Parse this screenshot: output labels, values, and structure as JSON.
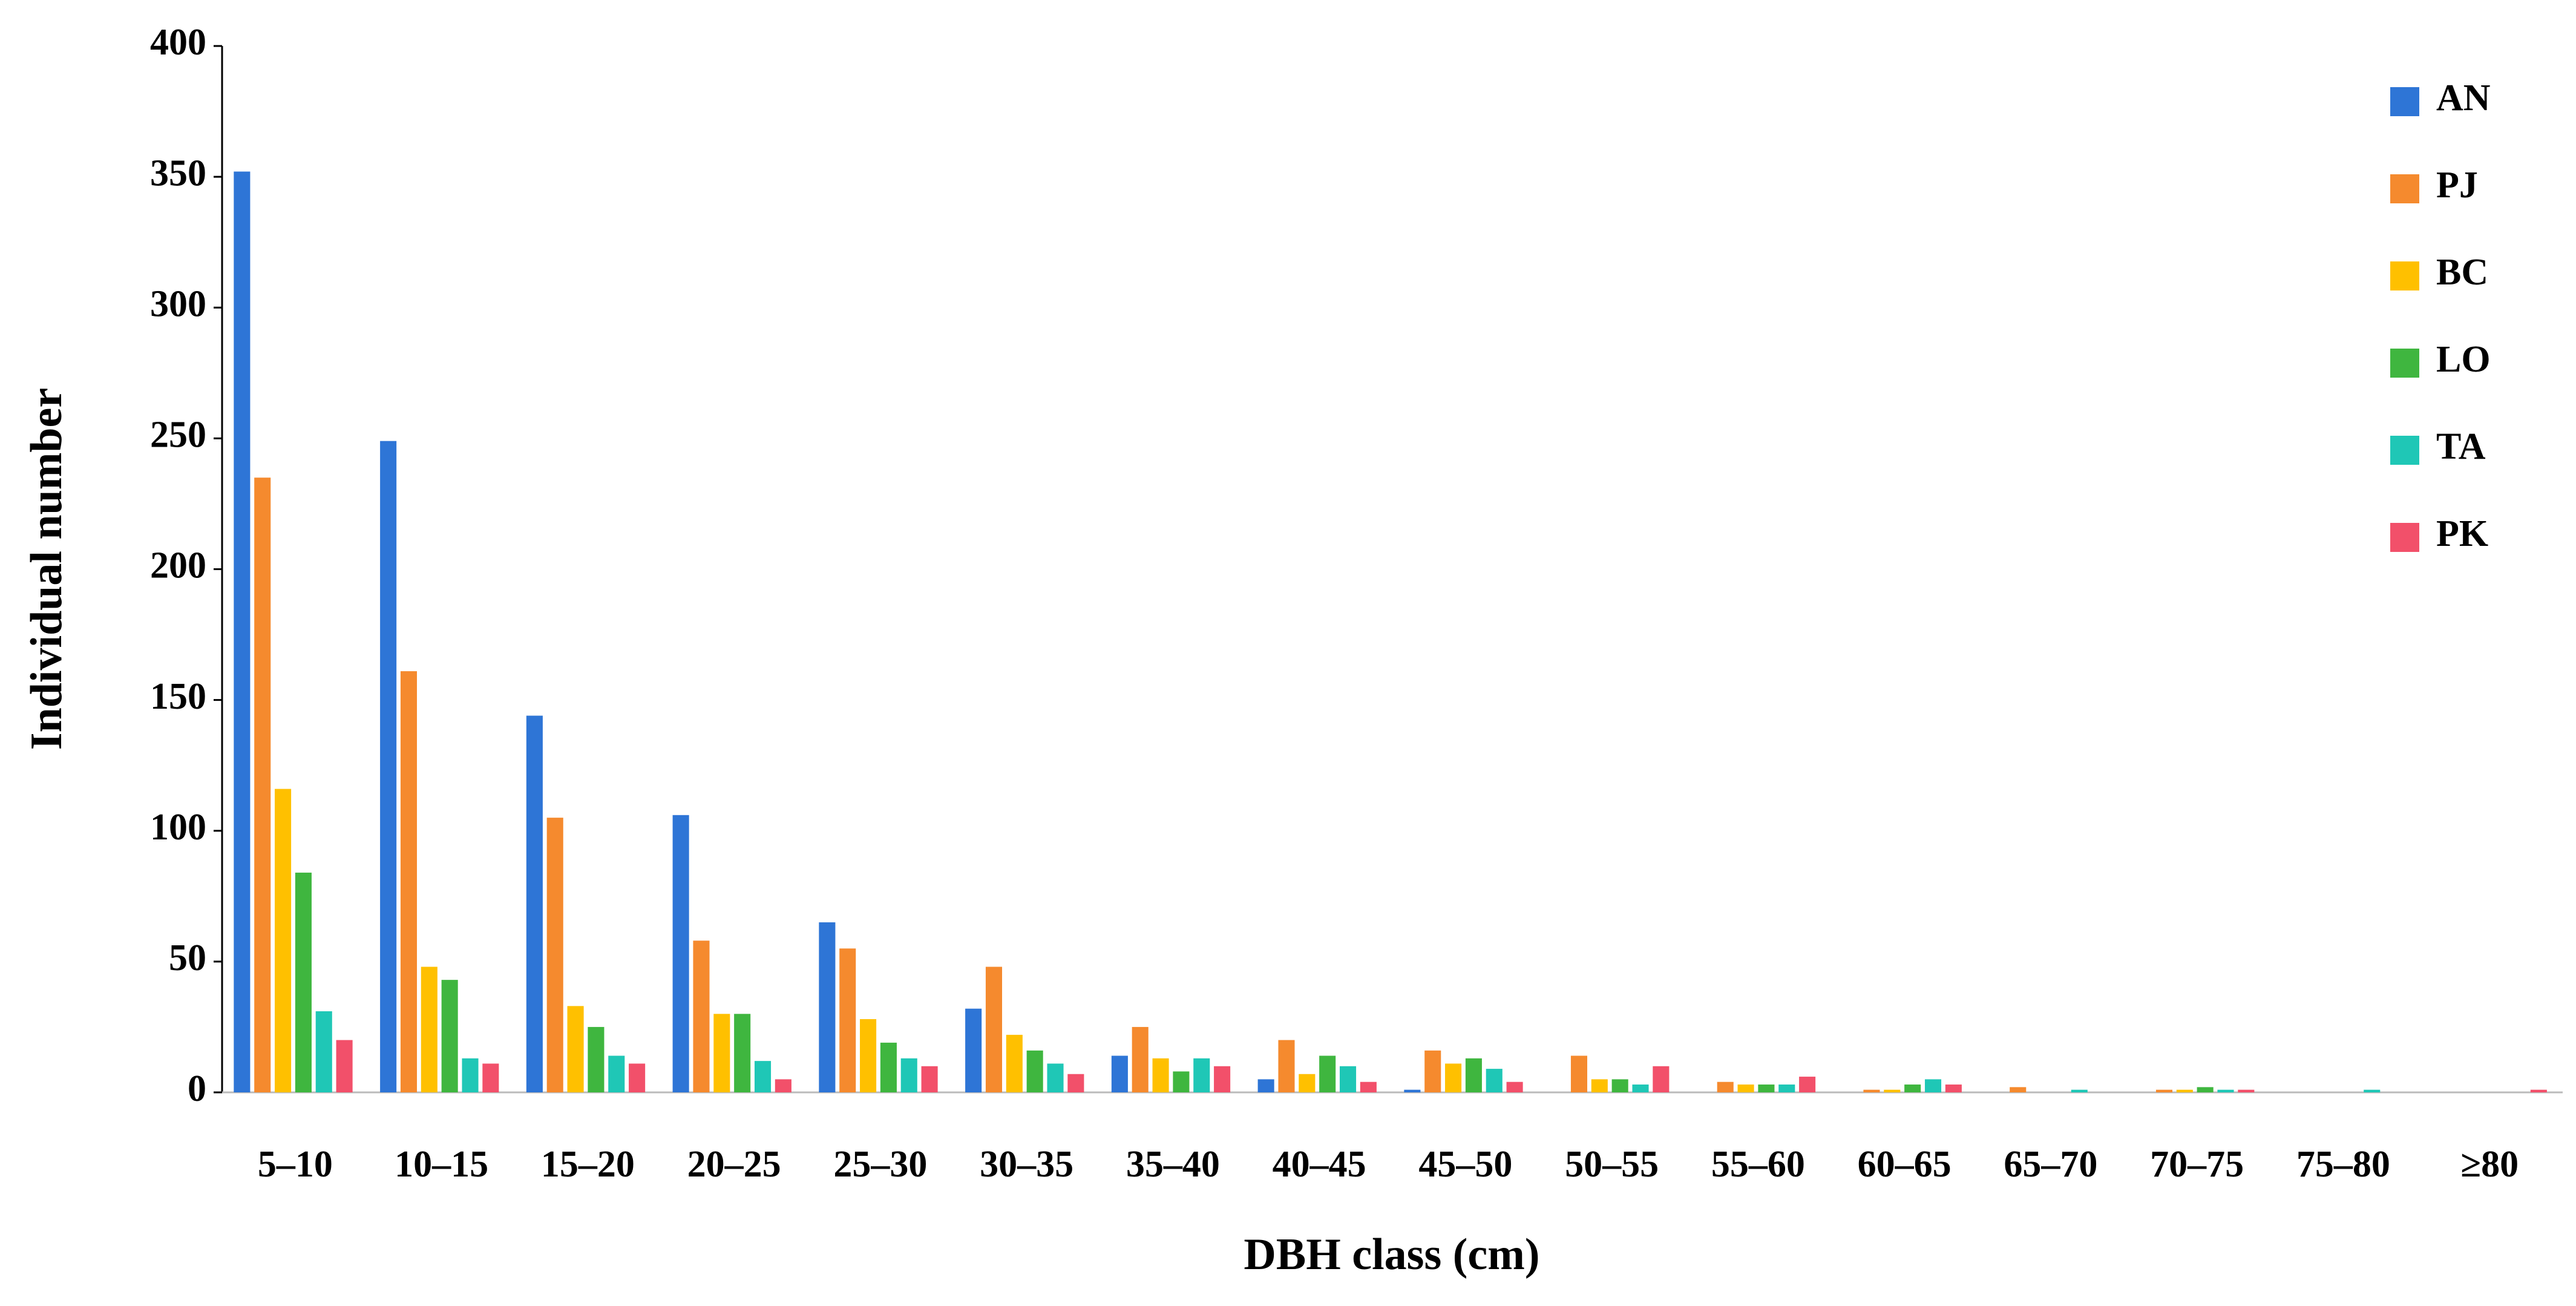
{
  "chart_data": {
    "type": "bar",
    "x_label": "DBH class (cm)",
    "y_label": "Individual number",
    "categories": [
      "5–10",
      "10–15",
      "15–20",
      "20–25",
      "25–30",
      "30–35",
      "35–40",
      "40–45",
      "45–50",
      "50–55",
      "55–60",
      "60–65",
      "65–70",
      "70–75",
      "75–80",
      "≥80"
    ],
    "series": [
      {
        "name": "AN",
        "color": "#2e75d6",
        "values": [
          352,
          249,
          144,
          106,
          65,
          32,
          14,
          5,
          1,
          0,
          0,
          0,
          0,
          0,
          0,
          0
        ]
      },
      {
        "name": "PJ",
        "color": "#f58a2e",
        "values": [
          235,
          161,
          105,
          58,
          55,
          48,
          25,
          20,
          16,
          14,
          4,
          1,
          2,
          1,
          0,
          0
        ]
      },
      {
        "name": "BC",
        "color": "#ffc000",
        "values": [
          116,
          48,
          33,
          30,
          28,
          22,
          13,
          7,
          11,
          5,
          3,
          1,
          0,
          1,
          0,
          0
        ]
      },
      {
        "name": "LO",
        "color": "#3fb63f",
        "values": [
          84,
          43,
          25,
          30,
          19,
          16,
          8,
          14,
          13,
          5,
          3,
          3,
          0,
          2,
          0,
          0
        ]
      },
      {
        "name": "TA",
        "color": "#1fc7b6",
        "values": [
          31,
          13,
          14,
          12,
          13,
          11,
          13,
          10,
          9,
          3,
          3,
          5,
          1,
          1,
          1,
          0
        ]
      },
      {
        "name": "PK",
        "color": "#f2506a",
        "values": [
          20,
          11,
          11,
          5,
          10,
          7,
          10,
          4,
          4,
          10,
          6,
          3,
          0,
          1,
          0,
          1
        ]
      }
    ],
    "ylim": [
      0,
      400
    ],
    "yticks": [
      0,
      50,
      100,
      150,
      200,
      250,
      300,
      350,
      400
    ],
    "legend": "top-right"
  }
}
